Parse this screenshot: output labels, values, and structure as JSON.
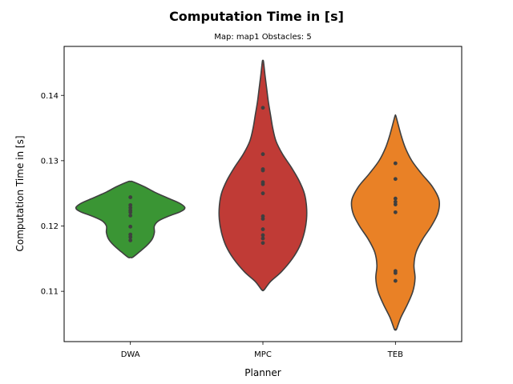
{
  "chart_data": {
    "type": "violin",
    "title": "Computation Time in [s]",
    "subtitle": "Map: map1 Obstacles: 5",
    "xlabel": "Planner",
    "ylabel": "Computation Time in [s]",
    "categories": [
      "DWA",
      "MPC",
      "TEB"
    ],
    "ylim": [
      0.1023,
      0.1475
    ],
    "yticks": [
      0.11,
      0.12,
      0.13,
      0.14
    ],
    "grid": false,
    "violins": [
      {
        "name": "DWA",
        "color": "#3a9534",
        "min": 0.1152,
        "max": 0.1268,
        "profile": [
          [
            0.1152,
            0.04
          ],
          [
            0.116,
            0.16
          ],
          [
            0.117,
            0.3
          ],
          [
            0.118,
            0.4
          ],
          [
            0.119,
            0.44
          ],
          [
            0.12,
            0.44
          ],
          [
            0.1208,
            0.52
          ],
          [
            0.1215,
            0.7
          ],
          [
            0.1222,
            0.92
          ],
          [
            0.1228,
            1.0
          ],
          [
            0.1235,
            0.9
          ],
          [
            0.1243,
            0.68
          ],
          [
            0.1252,
            0.44
          ],
          [
            0.126,
            0.26
          ],
          [
            0.1268,
            0.04
          ]
        ],
        "points": [
          0.1178,
          0.1183,
          0.1187,
          0.1199,
          0.1216,
          0.1221,
          0.1224,
          0.1228,
          0.1232,
          0.1244
        ]
      },
      {
        "name": "MPC",
        "color": "#c03b36",
        "min": 0.1102,
        "max": 0.1452,
        "profile": [
          [
            0.1102,
            0.02
          ],
          [
            0.1115,
            0.14
          ],
          [
            0.113,
            0.34
          ],
          [
            0.115,
            0.54
          ],
          [
            0.117,
            0.68
          ],
          [
            0.119,
            0.76
          ],
          [
            0.121,
            0.8
          ],
          [
            0.123,
            0.8
          ],
          [
            0.125,
            0.76
          ],
          [
            0.127,
            0.66
          ],
          [
            0.129,
            0.52
          ],
          [
            0.131,
            0.36
          ],
          [
            0.133,
            0.24
          ],
          [
            0.135,
            0.18
          ],
          [
            0.137,
            0.14
          ],
          [
            0.139,
            0.1
          ],
          [
            0.141,
            0.07
          ],
          [
            0.143,
            0.04
          ],
          [
            0.1452,
            0.01
          ]
        ],
        "points": [
          0.1174,
          0.1181,
          0.1186,
          0.1195,
          0.1211,
          0.1215,
          0.125,
          0.1264,
          0.1267,
          0.1285,
          0.1287,
          0.131,
          0.1381
        ]
      },
      {
        "name": "TEB",
        "color": "#e98126",
        "min": 0.1042,
        "max": 0.1368,
        "profile": [
          [
            0.1042,
            0.02
          ],
          [
            0.106,
            0.1
          ],
          [
            0.108,
            0.22
          ],
          [
            0.11,
            0.32
          ],
          [
            0.112,
            0.36
          ],
          [
            0.114,
            0.34
          ],
          [
            0.116,
            0.38
          ],
          [
            0.118,
            0.5
          ],
          [
            0.12,
            0.66
          ],
          [
            0.122,
            0.78
          ],
          [
            0.124,
            0.8
          ],
          [
            0.126,
            0.68
          ],
          [
            0.128,
            0.48
          ],
          [
            0.13,
            0.3
          ],
          [
            0.132,
            0.18
          ],
          [
            0.134,
            0.1
          ],
          [
            0.1368,
            0.01
          ]
        ],
        "points": [
          0.1116,
          0.1128,
          0.1131,
          0.1221,
          0.1233,
          0.1237,
          0.1242,
          0.1272,
          0.1296
        ]
      }
    ]
  }
}
